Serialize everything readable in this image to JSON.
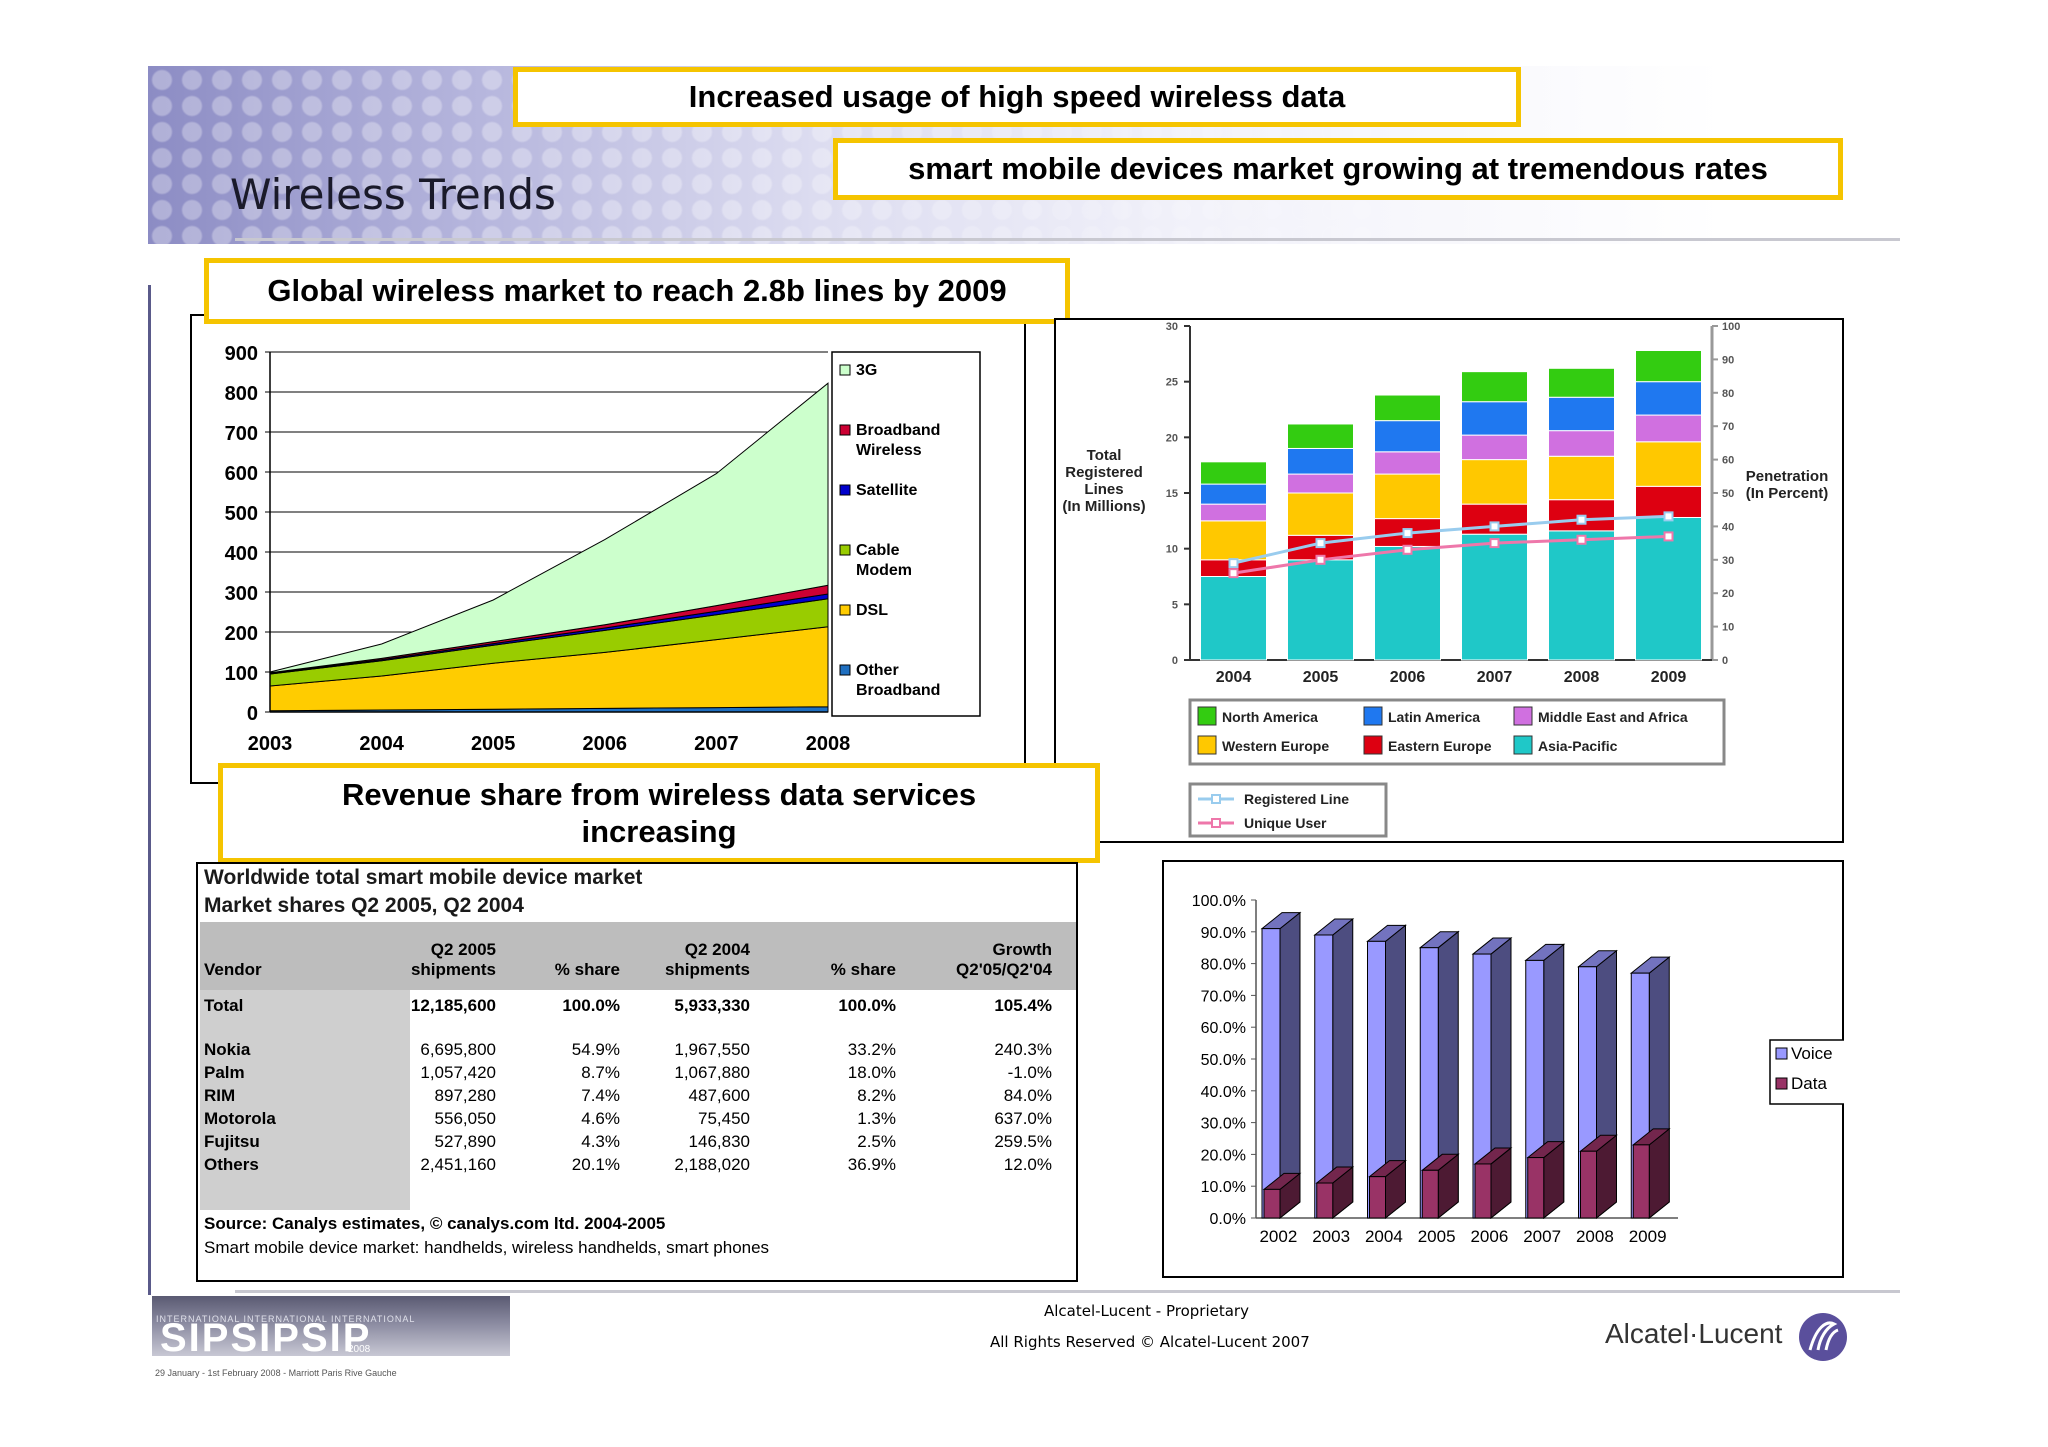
{
  "slide": {
    "title": "Wireless Trends",
    "callouts": {
      "top1": "Increased usage of high speed wireless data",
      "top2": "smart mobile devices market growing at tremendous rates",
      "left": "Global wireless market to reach 2.8b lines by 2009",
      "revenue": "Revenue share from wireless data services increasing"
    },
    "footer": {
      "line1": "Alcatel-Lucent - Proprietary",
      "line2": "All Rights Reserved © Alcatel-Lucent 2007",
      "brand": "Alcatel·Lucent",
      "event_top": "INTERNATIONAL INTERNATIONAL INTERNATIONAL",
      "event_logo": "SIPSIPSIP",
      "event_year": "2008",
      "event_dates": "29 January - 1st February 2008 - Marriott Paris Rive Gauche"
    },
    "colors": {
      "accent": "#f5c400"
    }
  },
  "table": {
    "title1": "Worldwide total smart mobile device market",
    "title2": "Market shares Q2 2005, Q2 2004",
    "headers": [
      [
        "Vendor",
        ""
      ],
      [
        "Q2 2005",
        "shipments"
      ],
      [
        "% share",
        ""
      ],
      [
        "Q2 2004",
        "shipments"
      ],
      [
        "% share",
        ""
      ],
      [
        "Growth",
        "Q2'05/Q2'04"
      ]
    ],
    "total": [
      "Total",
      "12,185,600",
      "100.0%",
      "5,933,330",
      "100.0%",
      "105.4%"
    ],
    "rows": [
      [
        "Nokia",
        "6,695,800",
        "54.9%",
        "1,967,550",
        "33.2%",
        "240.3%"
      ],
      [
        "Palm",
        "1,057,420",
        "8.7%",
        "1,067,880",
        "18.0%",
        "-1.0%"
      ],
      [
        "RIM",
        "897,280",
        "7.4%",
        "487,600",
        "8.2%",
        "84.0%"
      ],
      [
        "Motorola",
        "556,050",
        "4.6%",
        "75,450",
        "1.3%",
        "637.0%"
      ],
      [
        "Fujitsu",
        "527,890",
        "4.3%",
        "146,830",
        "2.5%",
        "259.5%"
      ],
      [
        "Others",
        "2,451,160",
        "20.1%",
        "2,188,020",
        "36.9%",
        "12.0%"
      ]
    ],
    "source": "Source: Canalys estimates, © canalys.com ltd. 2004-2005",
    "note": "Smart mobile device market: handhelds, wireless handhelds, smart phones"
  },
  "chart_data": [
    {
      "type": "area",
      "stacked": true,
      "x": [
        "2003",
        "2004",
        "2005",
        "2006",
        "2007",
        "2008"
      ],
      "ylim": [
        0,
        900
      ],
      "yticks": [
        0,
        100,
        200,
        300,
        400,
        500,
        600,
        700,
        800,
        900
      ],
      "grid": true,
      "legend_position": "right",
      "series": [
        {
          "name": "Other Broadband",
          "color": "#1f6fc0",
          "values": [
            3,
            5,
            7,
            9,
            11,
            13
          ]
        },
        {
          "name": "DSL",
          "color": "#ffcc00",
          "values": [
            62,
            85,
            115,
            140,
            170,
            200
          ]
        },
        {
          "name": "Cable Modem",
          "color": "#99cc00",
          "values": [
            30,
            38,
            45,
            55,
            62,
            70
          ]
        },
        {
          "name": "Satellite",
          "color": "#0000cc",
          "values": [
            2,
            3,
            4,
            6,
            9,
            12
          ]
        },
        {
          "name": "Broadband Wireless",
          "color": "#cc0033",
          "values": [
            1,
            3,
            5,
            8,
            14,
            22
          ]
        },
        {
          "name": "3G",
          "color": "#ccffcc",
          "values": [
            2,
            36,
            104,
            213,
            330,
            505
          ]
        }
      ]
    },
    {
      "type": "bar",
      "stacked": true,
      "categories": [
        "2004",
        "2005",
        "2006",
        "2007",
        "2008",
        "2009"
      ],
      "ylabel": "Total Registered Lines (In Millions)",
      "y2label": "Penetration (In Percent)",
      "ylim": [
        0,
        30
      ],
      "yticks": [
        0,
        5,
        10,
        15,
        20,
        25,
        30
      ],
      "y2lim": [
        0,
        100
      ],
      "y2ticks": [
        0,
        10,
        20,
        30,
        40,
        50,
        60,
        70,
        80,
        90,
        100
      ],
      "legend_position": "bottom",
      "series": [
        {
          "name": "Asia-Pacific",
          "color": "#1fc8c8",
          "values": [
            7.5,
            9.0,
            10.2,
            11.3,
            11.6,
            12.8
          ]
        },
        {
          "name": "Eastern Europe",
          "color": "#dd0011",
          "values": [
            1.5,
            2.2,
            2.5,
            2.7,
            2.8,
            2.8
          ]
        },
        {
          "name": "Western Europe",
          "color": "#ffc800",
          "values": [
            3.5,
            3.8,
            4.0,
            4.0,
            3.9,
            4.0
          ]
        },
        {
          "name": "Middle East and Africa",
          "color": "#d070e0",
          "values": [
            1.5,
            1.7,
            2.0,
            2.2,
            2.3,
            2.4
          ]
        },
        {
          "name": "Latin America",
          "color": "#1f78f0",
          "values": [
            1.8,
            2.3,
            2.8,
            3.0,
            3.0,
            3.0
          ]
        },
        {
          "name": "North America",
          "color": "#33cc11",
          "values": [
            2.0,
            2.2,
            2.3,
            2.7,
            2.6,
            2.8
          ]
        }
      ],
      "lines": [
        {
          "name": "Registered Line",
          "color": "#99ccee",
          "values": [
            29,
            35,
            38,
            40,
            42,
            43
          ]
        },
        {
          "name": "Unique User",
          "color": "#ee77aa",
          "values": [
            26,
            30,
            33,
            35,
            36,
            37
          ]
        }
      ]
    },
    {
      "type": "bar",
      "style": "3d",
      "categories": [
        "2002",
        "2003",
        "2004",
        "2005",
        "2006",
        "2007",
        "2008",
        "2009"
      ],
      "ylim": [
        0,
        100
      ],
      "yticks": [
        "0.0%",
        "10.0%",
        "20.0%",
        "30.0%",
        "40.0%",
        "50.0%",
        "60.0%",
        "70.0%",
        "80.0%",
        "90.0%",
        "100.0%"
      ],
      "legend_position": "right",
      "series": [
        {
          "name": "Voice",
          "color": "#9999ff",
          "values": [
            91,
            89,
            87,
            85,
            83,
            81,
            79,
            77
          ]
        },
        {
          "name": "Data",
          "color": "#993366",
          "values": [
            9,
            11,
            13,
            15,
            17,
            19,
            21,
            23
          ]
        }
      ]
    }
  ]
}
